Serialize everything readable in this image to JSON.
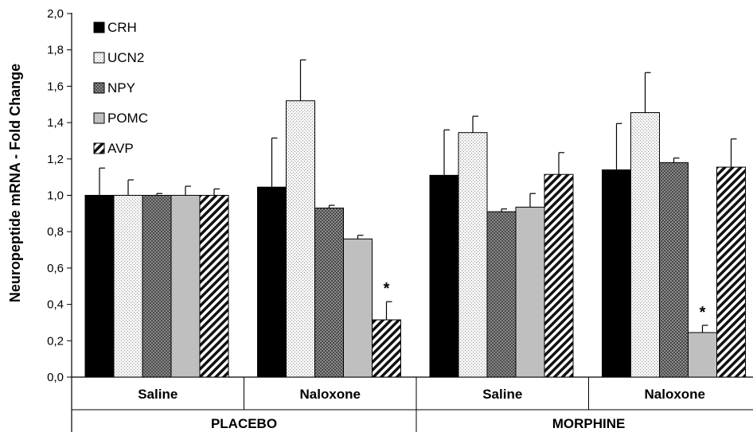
{
  "chart_data": {
    "type": "bar",
    "ylabel": "Neuropeptide mRNA - Fold Change",
    "ylim": [
      0,
      2.0
    ],
    "yticks": [
      "0,0",
      "0,2",
      "0,4",
      "0,6",
      "0,8",
      "1,0",
      "1,2",
      "1,4",
      "1,6",
      "1,8",
      "2,0"
    ],
    "categories": [
      "Saline",
      "Naloxone",
      "Saline",
      "Naloxone"
    ],
    "groups": [
      "PLACEBO",
      "MORPHINE"
    ],
    "legend_position": "top-left",
    "series": [
      {
        "name": "CRH",
        "pattern": "solid-black",
        "values": [
          1.0,
          1.045,
          1.11,
          1.14
        ],
        "errors": [
          0.15,
          0.27,
          0.25,
          0.255
        ]
      },
      {
        "name": "UCN2",
        "pattern": "light-dots",
        "values": [
          1.0,
          1.52,
          1.345,
          1.455
        ],
        "errors": [
          0.085,
          0.225,
          0.09,
          0.22
        ]
      },
      {
        "name": "NPY",
        "pattern": "dark-checker",
        "values": [
          1.0,
          0.93,
          0.91,
          1.18
        ],
        "errors": [
          0.01,
          0.015,
          0.015,
          0.025
        ]
      },
      {
        "name": "POMC",
        "pattern": "solid-gray",
        "values": [
          1.0,
          0.76,
          0.935,
          0.245
        ],
        "errors": [
          0.05,
          0.02,
          0.075,
          0.04
        ]
      },
      {
        "name": "AVP",
        "pattern": "diagonal-stripes",
        "values": [
          1.0,
          0.315,
          1.115,
          1.155
        ],
        "errors": [
          0.035,
          0.1,
          0.12,
          0.155
        ]
      }
    ],
    "annotations": [
      {
        "text": "*",
        "category_index": 1,
        "series": "AVP"
      },
      {
        "text": "*",
        "category_index": 3,
        "series": "POMC"
      }
    ],
    "colors": {
      "CRH": "#000000",
      "UCN2": "#f2f2f2",
      "NPY": "#6a6a6a",
      "POMC": "#bfbfbf",
      "AVP": "#ffffff"
    }
  }
}
